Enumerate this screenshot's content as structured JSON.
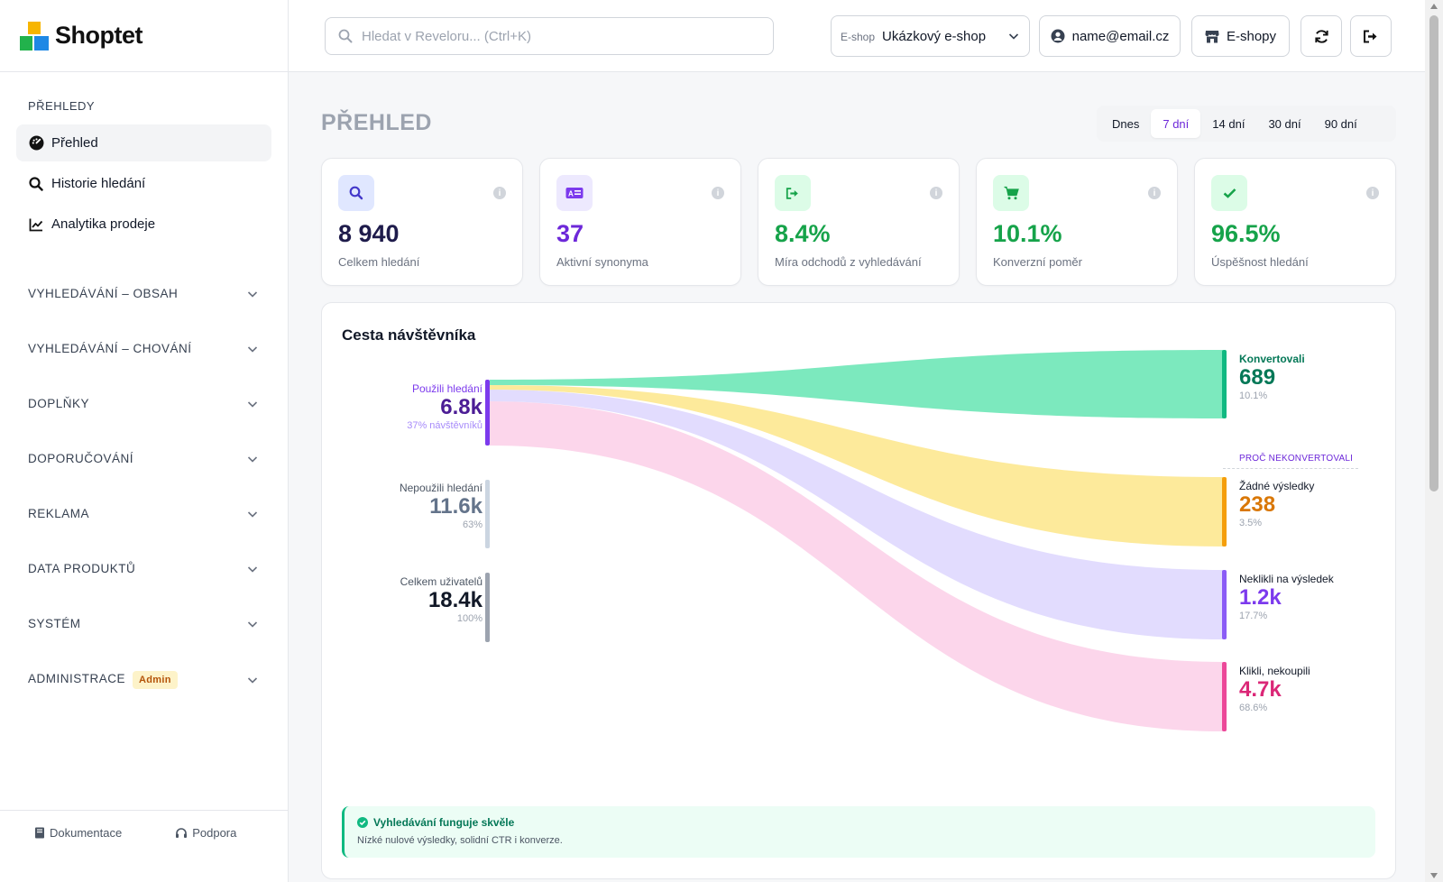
{
  "app": {
    "name": "Shoptet"
  },
  "sidebar": {
    "section_title": "PŘEHLEDY",
    "items": [
      {
        "label": "Přehled",
        "icon": "dashboard-icon",
        "active": true
      },
      {
        "label": "Historie hledání",
        "icon": "search-icon"
      },
      {
        "label": "Analytika prodeje",
        "icon": "chart-line-icon"
      }
    ],
    "groups": [
      {
        "label": "VYHLEDÁVÁNÍ – OBSAH"
      },
      {
        "label": "VYHLEDÁVÁNÍ – CHOVÁNÍ"
      },
      {
        "label": "DOPLŇKY"
      },
      {
        "label": "DOPORUČOVÁNÍ"
      },
      {
        "label": "REKLAMA"
      },
      {
        "label": "DATA PRODUKTŮ"
      },
      {
        "label": "SYSTÉM"
      },
      {
        "label": "ADMINISTRACE",
        "badge": "Admin"
      }
    ],
    "footer": {
      "docs": "Dokumentace",
      "support": "Podpora"
    }
  },
  "topbar": {
    "search_placeholder": "Hledat v Reveloru... (Ctrl+K)",
    "eshop_label": "E-shop",
    "eshop_value": "Ukázkový e-shop",
    "user_email": "name@email.cz",
    "eshops_button": "E-shopy"
  },
  "page": {
    "title": "PŘEHLED",
    "ranges": [
      "Dnes",
      "7 dní",
      "14 dní",
      "30 dní",
      "90 dní"
    ],
    "active_range": "7 dní"
  },
  "kpis": [
    {
      "value": "8 940",
      "label": "Celkem hledání",
      "icon": "search-icon",
      "color": "#1e1b4b",
      "icon_bg": "#e0e7ff",
      "icon_color": "#4338ca"
    },
    {
      "value": "37",
      "label": "Aktivní synonyma",
      "icon": "synonym-icon",
      "color": "#6d28d9",
      "icon_bg": "#ede9fe",
      "icon_color": "#7c3aed"
    },
    {
      "value": "8.4%",
      "label": "Míra odchodů z vyhledávání",
      "icon": "exit-icon",
      "color": "#16a34a",
      "icon_bg": "#dcfce7",
      "icon_color": "#16a34a"
    },
    {
      "value": "10.1%",
      "label": "Konverzní poměr",
      "icon": "cart-icon",
      "color": "#16a34a",
      "icon_bg": "#dcfce7",
      "icon_color": "#16a34a"
    },
    {
      "value": "96.5%",
      "label": "Úspěšnost hledání",
      "icon": "check-icon",
      "color": "#16a34a",
      "icon_bg": "#dcfce7",
      "icon_color": "#16a34a"
    }
  ],
  "journey": {
    "title": "Cesta návštěvníka",
    "left_nodes": [
      {
        "label": "Použili hledání",
        "value": "6.8k",
        "pct": "37% návštěvníků",
        "color": "#7c3aed",
        "label_color": "#7c3aed",
        "value_color": "#4c1d95",
        "pct_color": "#a78bfa"
      },
      {
        "label": "Nepoužili hledání",
        "value": "11.6k",
        "pct": "63%",
        "color": "#cbd5e1",
        "label_color": "#4b5563",
        "value_color": "#64748b",
        "pct_color": "#9ca3af"
      },
      {
        "label": "Celkem uživatelů",
        "value": "18.4k",
        "pct": "100%",
        "color": "#9ca3af",
        "label_color": "#4b5563",
        "value_color": "#111827",
        "pct_color": "#9ca3af"
      }
    ],
    "why_label": "PROČ NEKONVERTOVALI",
    "right_nodes": [
      {
        "label": "Konvertovali",
        "value": "689",
        "pct": "10.1%",
        "color": "#10b981",
        "label_color": "#047857",
        "value_color": "#047857"
      },
      {
        "label": "Žádné výsledky",
        "value": "238",
        "pct": "3.5%",
        "color": "#f59e0b",
        "label_color": "#111827",
        "value_color": "#d97706"
      },
      {
        "label": "Neklikli na výsledek",
        "value": "1.2k",
        "pct": "17.7%",
        "color": "#8b5cf6",
        "label_color": "#111827",
        "value_color": "#7c3aed"
      },
      {
        "label": "Klikli, nekoupili",
        "value": "4.7k",
        "pct": "68.6%",
        "color": "#ec4899",
        "label_color": "#111827",
        "value_color": "#db2777"
      }
    ],
    "flow_colors": [
      "#6ee7b7",
      "#fde68a",
      "#ddd6fe",
      "#fbcfe8"
    ]
  },
  "alert": {
    "title": "Vyhledávání funguje skvěle",
    "desc": "Nízké nulové výsledky, solidní CTR i konverze."
  }
}
